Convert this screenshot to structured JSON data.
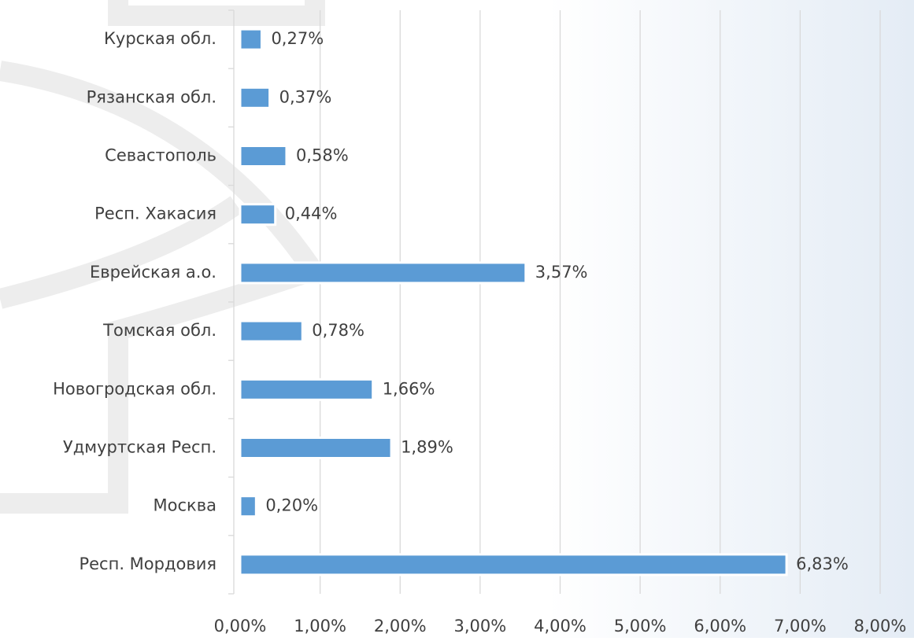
{
  "chart_data": {
    "type": "bar",
    "orientation": "horizontal",
    "categories": [
      "Курская обл.",
      "Рязанская обл.",
      "Севастополь",
      "Респ. Хакасия",
      "Еврейская а.о.",
      "Томская обл.",
      "Новогродская обл.",
      "Удмуртская Респ.",
      "Москва",
      "Респ. Мордовия"
    ],
    "values": [
      0.27,
      0.37,
      0.58,
      0.44,
      3.57,
      0.78,
      1.66,
      1.89,
      0.2,
      6.83
    ],
    "value_labels": [
      "0,27%",
      "0,37%",
      "0,58%",
      "0,44%",
      "3,57%",
      "0,78%",
      "1,66%",
      "1,89%",
      "0,20%",
      "6,83%"
    ],
    "color": "#5b9bd5",
    "xlim": [
      0,
      8
    ],
    "xticks": [
      {
        "value": 0,
        "label": "0,00%"
      },
      {
        "value": 1,
        "label": "1,00%"
      },
      {
        "value": 2,
        "label": "2,00%"
      },
      {
        "value": 3,
        "label": "3,00%"
      },
      {
        "value": 4,
        "label": "4,00%"
      },
      {
        "value": 5,
        "label": "5,00%"
      },
      {
        "value": 6,
        "label": "6,00%"
      },
      {
        "value": 7,
        "label": "7,00%"
      },
      {
        "value": 8,
        "label": "8,00%"
      }
    ],
    "grid": true
  }
}
